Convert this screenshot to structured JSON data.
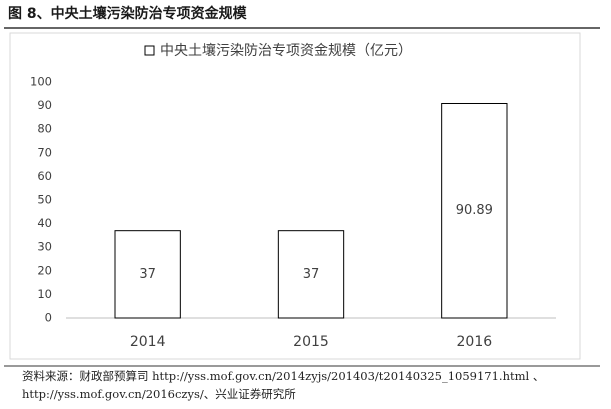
{
  "header": {
    "title": "图 8、中央土壤污染防治专项资金规模"
  },
  "chart_data": {
    "type": "bar",
    "categories": [
      "2014",
      "2015",
      "2016"
    ],
    "series": [
      {
        "name": "中央土壤污染防治专项资金规模（亿元）",
        "color": "#ffffff",
        "values": [
          37,
          37,
          90.89
        ]
      }
    ],
    "ylim": [
      0,
      100
    ],
    "yticks": [
      0,
      10,
      20,
      30,
      40,
      50,
      60,
      70,
      80,
      90,
      100
    ],
    "grid": false,
    "legend": "top"
  },
  "source": {
    "lines": [
      "资料来源：财政部预算司 http://yss.mof.gov.cn/2014zyjs/201403/t20140325_1059171.html 、",
      "http://yss.mof.gov.cn/2016czys/、兴业证券研究所"
    ]
  }
}
